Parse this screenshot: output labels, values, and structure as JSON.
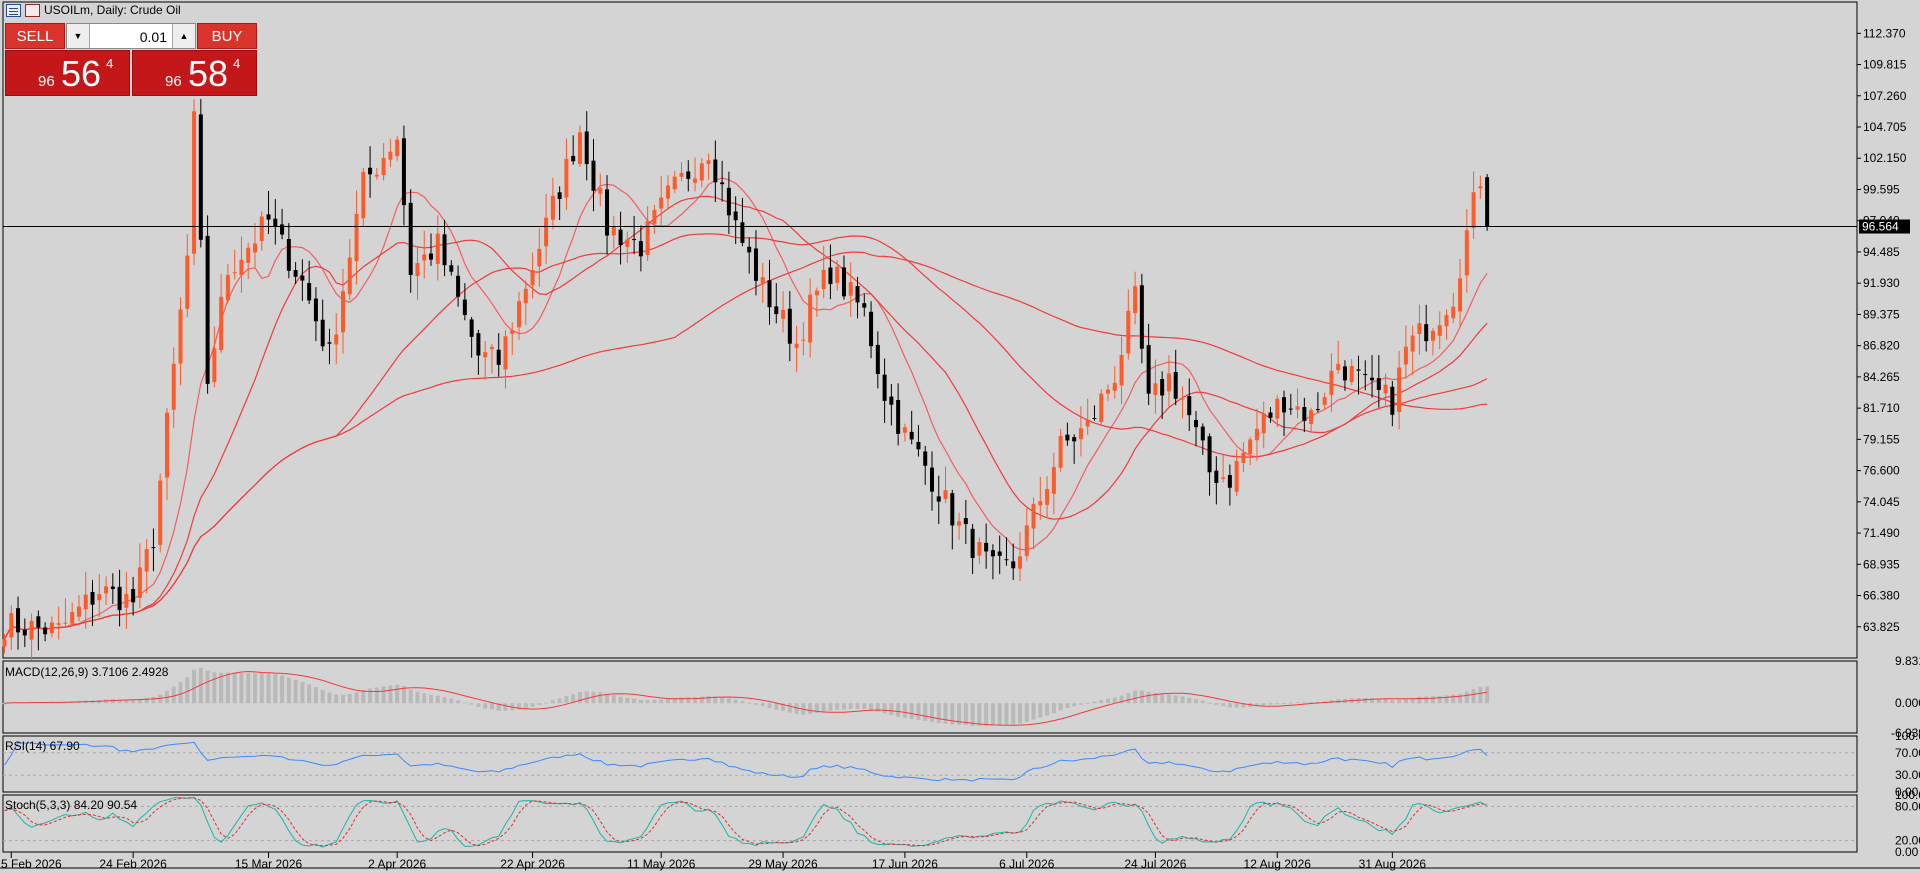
{
  "header": {
    "title": "USOILm, Daily:  Crude Oil"
  },
  "trade_panel": {
    "sell_label": "SELL",
    "buy_label": "BUY",
    "lot_value": "0.01",
    "sell_price": {
      "small": "96",
      "big": "56",
      "sup": "4"
    },
    "buy_price": {
      "small": "96",
      "big": "58",
      "sup": "4"
    }
  },
  "current_price_label": "96.564",
  "colors": {
    "background": "#d4d4d4",
    "bull": "#ff5a2a",
    "bear": "#000000",
    "ma": "#f23a3a",
    "ma_light": "#f55d5d",
    "rsi": "#3a8aff",
    "stoch_main": "#20b2aa",
    "stoch_signal": "#e03030",
    "macd_hist": "#b9b9b9"
  },
  "chart_data": [
    {
      "type": "candlestick",
      "symbol": "USOILm",
      "timeframe": "Daily",
      "y_ticks": [
        "112.370",
        "109.815",
        "107.260",
        "104.705",
        "102.150",
        "99.595",
        "97.040",
        "94.485",
        "91.930",
        "89.375",
        "86.820",
        "84.265",
        "81.710",
        "79.155",
        "76.600",
        "74.045",
        "71.490",
        "68.935",
        "66.380",
        "63.825"
      ],
      "ylim": [
        61.27,
        114.93
      ],
      "current_price": 96.564,
      "x_ticks": [
        "5 Feb 2026",
        "24 Feb 2026",
        "15 Mar 2026",
        "2 Apr 2026",
        "22 Apr 2026",
        "11 May 2026",
        "29 May 2026",
        "17 Jun 2026",
        "6 Jul 2026",
        "24 Jul 2026",
        "12 Aug 2026",
        "31 Aug 2026"
      ],
      "x_tick_bar_index": [
        1,
        19,
        39,
        58,
        78,
        97,
        115,
        133,
        151,
        170,
        188,
        205
      ],
      "ohlc_keypoints": [
        [
          0,
          64.0
        ],
        [
          8,
          63.5
        ],
        [
          14,
          66.8
        ],
        [
          19,
          65.9
        ],
        [
          22,
          71.2
        ],
        [
          27,
          94
        ],
        [
          28,
          105
        ],
        [
          30,
          84
        ],
        [
          33,
          93
        ],
        [
          39,
          97
        ],
        [
          44,
          92
        ],
        [
          48,
          86
        ],
        [
          53,
          100
        ],
        [
          58,
          104
        ],
        [
          60,
          93
        ],
        [
          64,
          95
        ],
        [
          70,
          86
        ],
        [
          73,
          85.5
        ],
        [
          79,
          95
        ],
        [
          85,
          104.5
        ],
        [
          89,
          96.5
        ],
        [
          94,
          95
        ],
        [
          98,
          99
        ],
        [
          104,
          103
        ],
        [
          108,
          96.5
        ],
        [
          112,
          91.5
        ],
        [
          117,
          87
        ],
        [
          119,
          90
        ],
        [
          122,
          93
        ],
        [
          127,
          89.5
        ],
        [
          130,
          83
        ],
        [
          133,
          79.5
        ],
        [
          136,
          77
        ],
        [
          141,
          72
        ],
        [
          146,
          68.4
        ],
        [
          149,
          68.8
        ],
        [
          156,
          78.5
        ],
        [
          160,
          80.2
        ],
        [
          164,
          84.5
        ],
        [
          167,
          90.5
        ],
        [
          169,
          82
        ],
        [
          172,
          84.2
        ],
        [
          174,
          82.5
        ],
        [
          178,
          76.5
        ],
        [
          181,
          76
        ],
        [
          185,
          80
        ],
        [
          189,
          82.5
        ],
        [
          193,
          81
        ],
        [
          197,
          85.5
        ],
        [
          202,
          83
        ],
        [
          205,
          82.3
        ],
        [
          207,
          86.5
        ],
        [
          212,
          89.5
        ],
        [
          214,
          91
        ],
        [
          216,
          96
        ],
        [
          218,
          100.6
        ],
        [
          219,
          96.56
        ]
      ],
      "moving_averages": [
        {
          "period": 10,
          "color": "#f55d5d"
        },
        {
          "period": 21,
          "color": "#f23a3a"
        },
        {
          "period": 50,
          "color": "#f23a3a"
        },
        {
          "period": 100,
          "color": "#f23a3a"
        }
      ]
    },
    {
      "type": "histogram+line",
      "title": "MACD(12,26,9) 3.7106 2.4928",
      "y_ticks": [
        "9.8315",
        "0.0000",
        "-6.9395"
      ],
      "ylim": [
        -6.9395,
        9.8315
      ]
    },
    {
      "type": "line",
      "title": "RSI(14) 67.90",
      "y_ticks": [
        "100.00",
        "70.00",
        "30.00",
        "0.00"
      ],
      "levels": [
        70,
        30
      ],
      "ylim": [
        0,
        100
      ]
    },
    {
      "type": "line",
      "title": "Stoch(5,3,3) 84.20 90.54",
      "y_ticks": [
        "100.00",
        "80.00",
        "20.00",
        "0.00"
      ],
      "levels": [
        80,
        20
      ],
      "ylim": [
        0,
        100
      ]
    }
  ]
}
